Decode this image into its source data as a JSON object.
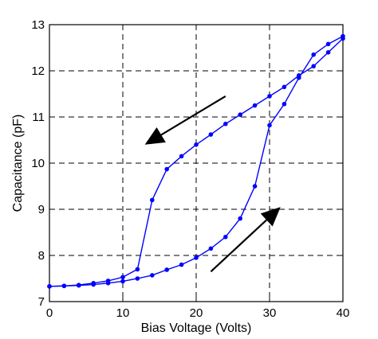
{
  "chart_data": {
    "type": "line",
    "title": "",
    "xlabel": "Bias Voltage (Volts)",
    "ylabel": "Capacitance (pF)",
    "xlim": [
      0,
      40
    ],
    "ylim": [
      7,
      13
    ],
    "xticks": [
      0,
      10,
      20,
      30,
      40
    ],
    "yticks": [
      7,
      8,
      9,
      10,
      11,
      12,
      13
    ],
    "xtick_labels": [
      "0",
      "10",
      "20",
      "30",
      "40"
    ],
    "ytick_labels": [
      "7",
      "8",
      "9",
      "10",
      "11",
      "12",
      "13"
    ],
    "grid": true,
    "grid_style": "dashed",
    "series_color": "#0000ff",
    "series": [
      {
        "direction": "increasing",
        "x": [
          0,
          2,
          4,
          6,
          8,
          10,
          12,
          14,
          16,
          18,
          20,
          22,
          24,
          26,
          28,
          30,
          32,
          34,
          36,
          38,
          40
        ],
        "y": [
          7.33,
          7.34,
          7.35,
          7.37,
          7.4,
          7.44,
          7.5,
          7.57,
          7.69,
          7.8,
          7.95,
          8.15,
          8.4,
          8.8,
          9.5,
          10.82,
          11.28,
          11.85,
          12.35,
          12.58,
          12.75
        ]
      },
      {
        "direction": "decreasing",
        "x": [
          40,
          38,
          36,
          34,
          32,
          30,
          28,
          26,
          24,
          22,
          20,
          18,
          16,
          14,
          12,
          10,
          8,
          6,
          4,
          2,
          0
        ],
        "y": [
          12.7,
          12.4,
          12.1,
          11.9,
          11.65,
          11.45,
          11.25,
          11.05,
          10.85,
          10.62,
          10.4,
          10.15,
          9.87,
          9.2,
          7.7,
          7.53,
          7.45,
          7.4,
          7.36,
          7.34,
          7.33
        ]
      }
    ],
    "annotations": [
      {
        "type": "arrow",
        "meaning": "sweep-down",
        "from": [
          24,
          11.45
        ],
        "to": [
          13,
          10.4
        ]
      },
      {
        "type": "arrow",
        "meaning": "sweep-up",
        "from": [
          22,
          7.65
        ],
        "to": [
          31.5,
          9.05
        ]
      }
    ]
  }
}
